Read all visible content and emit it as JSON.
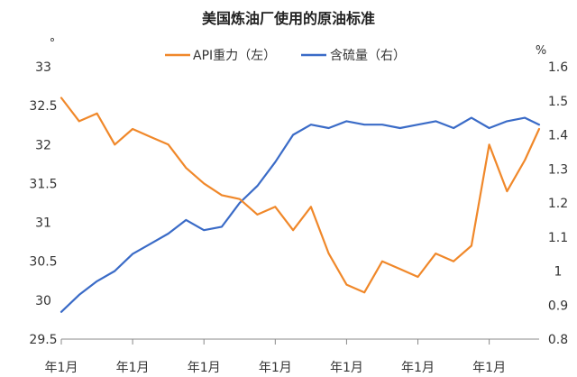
{
  "chart_data": {
    "type": "line",
    "title": "美国炼油厂使用的原油标准",
    "left_axis": {
      "unit_label": "°",
      "ylim": [
        29.5,
        33
      ],
      "ticks": [
        "33",
        "32.5",
        "32",
        "31.5",
        "31",
        "30.5",
        "30",
        "29.5"
      ]
    },
    "right_axis": {
      "unit_label": "%",
      "ylim": [
        0.8,
        1.6
      ],
      "ticks": [
        "1.6",
        "1.5",
        "1.4",
        "1.3",
        "1.2",
        "1.1",
        "1",
        "0.9",
        "0.8"
      ]
    },
    "x_axis": {
      "type": "time",
      "xlim": [
        0,
        6.7
      ],
      "tick_positions": [
        0,
        1,
        2,
        3,
        4,
        5,
        6
      ],
      "tick_labels": [
        "年1月",
        "年1月",
        "年1月",
        "年1月",
        "年1月",
        "年1月",
        "年1月"
      ]
    },
    "grid": false,
    "legend_position": "top-center",
    "series": [
      {
        "name": "API重力（左）",
        "axis": "left",
        "color": "#F0882A",
        "x": [
          0,
          0.25,
          0.5,
          0.75,
          1.0,
          1.25,
          1.5,
          1.75,
          2.0,
          2.25,
          2.5,
          2.75,
          3.0,
          3.25,
          3.5,
          3.75,
          4.0,
          4.25,
          4.5,
          4.75,
          5.0,
          5.25,
          5.5,
          5.75,
          6.0,
          6.25,
          6.5,
          6.7
        ],
        "values": [
          32.6,
          32.3,
          32.4,
          32.0,
          32.2,
          32.1,
          32.0,
          31.7,
          31.5,
          31.35,
          31.3,
          31.1,
          31.2,
          30.9,
          31.2,
          30.6,
          30.2,
          30.1,
          30.5,
          30.4,
          30.3,
          30.6,
          30.5,
          30.7,
          32.0,
          31.4,
          31.8,
          32.2
        ]
      },
      {
        "name": "含硫量（右）",
        "axis": "right",
        "color": "#3A6BC7",
        "x": [
          0,
          0.25,
          0.5,
          0.75,
          1.0,
          1.25,
          1.5,
          1.75,
          2.0,
          2.25,
          2.5,
          2.75,
          3.0,
          3.25,
          3.5,
          3.75,
          4.0,
          4.25,
          4.5,
          4.75,
          5.0,
          5.25,
          5.5,
          5.75,
          6.0,
          6.25,
          6.5,
          6.7
        ],
        "values": [
          0.88,
          0.93,
          0.97,
          1.0,
          1.05,
          1.08,
          1.11,
          1.15,
          1.12,
          1.13,
          1.2,
          1.25,
          1.32,
          1.4,
          1.43,
          1.42,
          1.44,
          1.43,
          1.43,
          1.42,
          1.43,
          1.44,
          1.42,
          1.45,
          1.42,
          1.44,
          1.45,
          1.43
        ]
      }
    ]
  }
}
